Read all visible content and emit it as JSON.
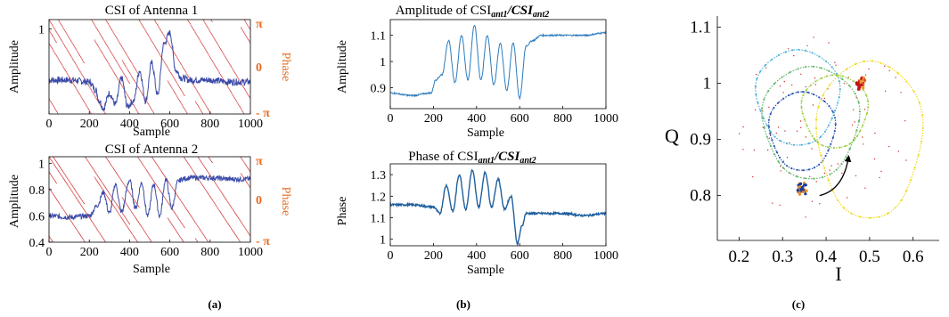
{
  "colors": {
    "amp": "#3b4aa8",
    "phase_dots": "#d12a2a",
    "phase_axis": "#e46c22",
    "ratio": "#2b7bbd",
    "ratio_dark": "#1f5f9e"
  },
  "captions": {
    "a": "(a)",
    "b": "(b)",
    "c": "(c)"
  },
  "chart_data": [
    {
      "type": "line",
      "title": "CSI of Antenna 1",
      "xlabel": "Sample",
      "ylabel": "Amplitude",
      "y2label": "Phase",
      "xlim": [
        0,
        1000
      ],
      "ylim": [
        0.55,
        1.05
      ],
      "xticks": [
        "0",
        "200",
        "400",
        "600",
        "800",
        "1000"
      ],
      "yticks": [
        "1"
      ],
      "y2ticks": [
        "π",
        "0",
        "- π"
      ],
      "series": [
        {
          "x": [
            0,
            100,
            200,
            230,
            250,
            270,
            300,
            330,
            360,
            390,
            420,
            450,
            480,
            510,
            540,
            570,
            600,
            630,
            660,
            700,
            800,
            900,
            1000
          ],
          "y": [
            0.73,
            0.73,
            0.72,
            0.68,
            0.62,
            0.58,
            0.66,
            0.6,
            0.74,
            0.59,
            0.62,
            0.78,
            0.62,
            0.82,
            0.65,
            0.92,
            0.98,
            0.78,
            0.74,
            0.73,
            0.73,
            0.72,
            0.72
          ]
        }
      ]
    },
    {
      "type": "line",
      "title": "CSI of Antenna 2",
      "xlabel": "Sample",
      "ylabel": "Amplitude",
      "y2label": "Phase",
      "xlim": [
        0,
        1000
      ],
      "ylim": [
        0.4,
        1.05
      ],
      "xticks": [
        "0",
        "200",
        "400",
        "600",
        "800",
        "1000"
      ],
      "yticks": [
        "0.4",
        "0.6",
        "0.8",
        "1"
      ],
      "y2ticks": [
        "π",
        "0",
        "- π"
      ],
      "series": [
        {
          "x": [
            0,
            100,
            200,
            240,
            270,
            300,
            330,
            360,
            400,
            430,
            460,
            490,
            520,
            550,
            580,
            610,
            640,
            660,
            700,
            800,
            900,
            1000
          ],
          "y": [
            0.6,
            0.59,
            0.6,
            0.68,
            0.78,
            0.62,
            0.84,
            0.63,
            0.87,
            0.66,
            0.85,
            0.6,
            0.84,
            0.6,
            0.88,
            0.66,
            0.86,
            0.88,
            0.89,
            0.89,
            0.88,
            0.88
          ]
        }
      ]
    },
    {
      "type": "line",
      "title": "Amplitude of CSI",
      "title_sub": "ant1",
      "title_mid": "/CSI",
      "title_sub2": "ant2",
      "xlabel": "Sample",
      "ylabel": "Amplitude",
      "xlim": [
        0,
        1000
      ],
      "ylim": [
        0.82,
        1.16
      ],
      "xticks": [
        "0",
        "200",
        "400",
        "600",
        "800",
        "1000"
      ],
      "yticks": [
        "0.9",
        "1",
        "1.1"
      ],
      "series": [
        {
          "x": [
            0,
            100,
            190,
            210,
            240,
            270,
            300,
            330,
            360,
            390,
            420,
            450,
            480,
            510,
            540,
            570,
            600,
            630,
            660,
            700,
            800,
            900,
            1000
          ],
          "y": [
            0.88,
            0.87,
            0.88,
            0.93,
            0.95,
            1.08,
            0.92,
            1.1,
            0.93,
            1.14,
            0.93,
            1.1,
            0.91,
            1.07,
            0.89,
            1.07,
            0.86,
            1.06,
            1.08,
            1.1,
            1.1,
            1.1,
            1.11
          ]
        }
      ]
    },
    {
      "type": "line",
      "title": "Phase of  CSI",
      "title_sub": "ant1",
      "title_mid": "/CSI",
      "title_sub2": "ant2",
      "xlabel": "Sample",
      "ylabel": "Phase",
      "xlim": [
        0,
        1000
      ],
      "ylim": [
        0.97,
        1.35
      ],
      "xticks": [
        "0",
        "200",
        "400",
        "600",
        "800",
        "1000"
      ],
      "yticks": [
        "1",
        "1.1",
        "1.2",
        "1.3"
      ],
      "series": [
        {
          "x": [
            0,
            100,
            200,
            230,
            260,
            290,
            320,
            350,
            380,
            410,
            440,
            470,
            500,
            530,
            560,
            590,
            610,
            630,
            660,
            700,
            800,
            900,
            1000
          ],
          "y": [
            1.16,
            1.16,
            1.15,
            1.12,
            1.25,
            1.13,
            1.3,
            1.14,
            1.32,
            1.15,
            1.31,
            1.15,
            1.28,
            1.14,
            1.2,
            0.98,
            1.06,
            1.12,
            1.12,
            1.12,
            1.12,
            1.11,
            1.12
          ]
        }
      ]
    },
    {
      "type": "scatter",
      "title": "",
      "xlabel": "I",
      "ylabel": "Q",
      "xlim": [
        0.15,
        0.66
      ],
      "ylim": [
        0.72,
        1.12
      ],
      "xticks": [
        "0.2",
        "0.3",
        "0.4",
        "0.5",
        "0.6"
      ],
      "yticks": [
        "0.8",
        "0.9",
        "1",
        "1.1"
      ],
      "series": [
        {
          "color": "#4fb3d9",
          "center": [
            0.335,
            0.975
          ],
          "radius": [
            0.095,
            0.085
          ]
        },
        {
          "color": "#62b56a",
          "center": [
            0.365,
            0.93
          ],
          "radius": [
            0.11,
            0.1
          ]
        },
        {
          "color": "#2f57b0",
          "center": [
            0.345,
            0.915
          ],
          "radius": [
            0.075,
            0.07
          ]
        },
        {
          "color": "#f2d81b",
          "center": [
            0.5,
            0.9
          ],
          "radius": [
            0.12,
            0.14
          ]
        },
        {
          "color": "#9fcf46",
          "center": [
            0.42,
            0.95
          ],
          "radius": [
            0.075,
            0.065
          ]
        }
      ],
      "clusters": [
        {
          "point": [
            0.345,
            0.812
          ],
          "color": "#1a3a9a"
        },
        {
          "point": [
            0.48,
            1.0
          ],
          "color": "#c0161a"
        }
      ]
    }
  ]
}
